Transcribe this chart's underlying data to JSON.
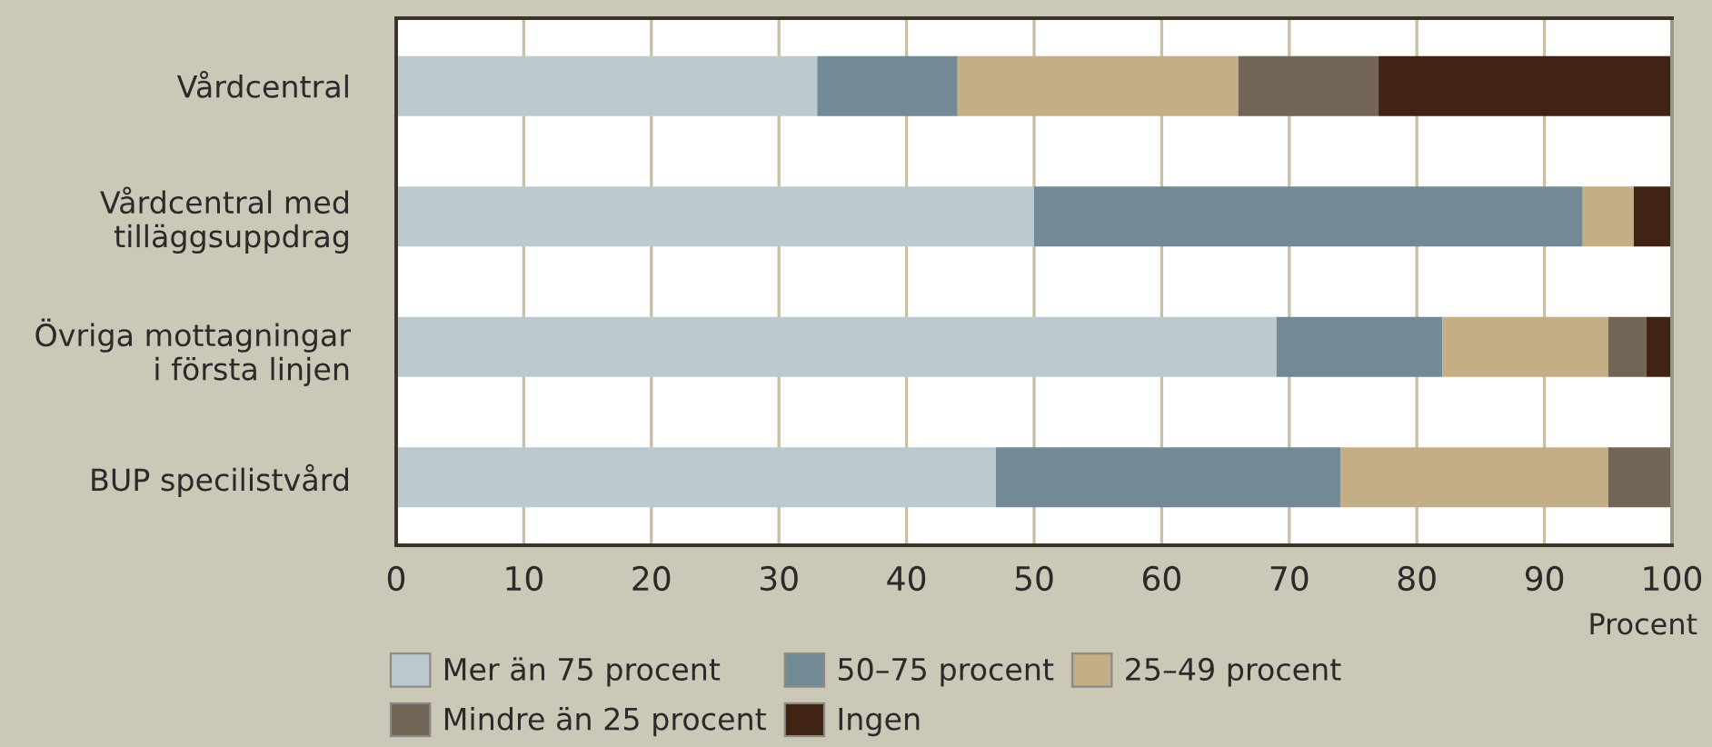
{
  "chart_data": {
    "type": "bar",
    "orientation": "horizontal",
    "stacked": true,
    "categories": [
      "Vårdcentral",
      "Vårdcentral med\ntilläggsuppdrag",
      "Övriga mottagningar\ni första linjen",
      "BUP specilistvård"
    ],
    "series": [
      {
        "name": "Mer än 75 procent",
        "color": "#bccacf",
        "values": [
          33,
          50,
          69,
          47
        ]
      },
      {
        "name": "50–75 procent",
        "color": "#728a96",
        "values": [
          11,
          43,
          13,
          27
        ]
      },
      {
        "name": "25–49 procent",
        "color": "#c4ae85",
        "values": [
          22,
          4,
          13,
          21
        ]
      },
      {
        "name": "Mindre än 25 procent",
        "color": "#736555",
        "values": [
          11,
          0,
          3,
          5
        ]
      },
      {
        "name": "Ingen",
        "color": "#402312",
        "values": [
          23,
          3,
          2,
          0
        ]
      }
    ],
    "xlabel": "Procent",
    "xlim": [
      0,
      100
    ],
    "xticks": [
      0,
      10,
      20,
      30,
      40,
      50,
      60,
      70,
      80,
      90,
      100
    ],
    "grid": "x",
    "legend": "bottom"
  }
}
